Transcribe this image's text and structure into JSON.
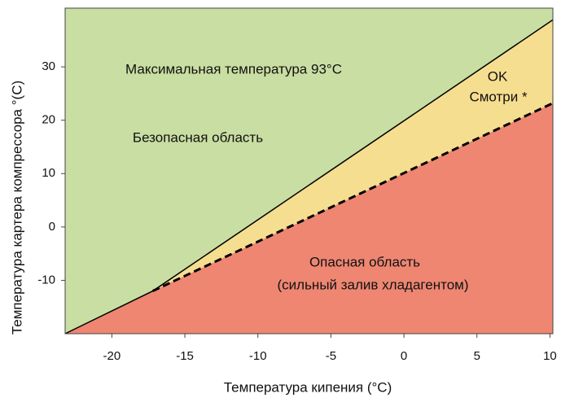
{
  "chart_data": {
    "type": "line",
    "xlabel": "Температура кипения (°C)",
    "ylabel": "Температура картера компрессора °(C)",
    "xlim": [
      -23.2,
      10.2
    ],
    "ylim": [
      -20,
      41
    ],
    "xticks": [
      -20,
      -15,
      -10,
      -5,
      0,
      5,
      10
    ],
    "yticks": [
      -10,
      0,
      10,
      20,
      30
    ],
    "region_colors": {
      "safe": "#c9dea2",
      "caution": "#f6de90",
      "danger": "#ee8672"
    },
    "series": [
      {
        "style": "solid",
        "color": "#000000",
        "x": [
          -23.2,
          -17.2,
          10.2
        ],
        "values": [
          -20,
          -12,
          38.8
        ]
      },
      {
        "style": "dashed",
        "color": "#000000",
        "x": [
          -17.2,
          10.2
        ],
        "values": [
          -12,
          23.2
        ]
      }
    ],
    "annotations": [
      "Максимальная температура 93°C",
      "OK",
      "Смотри *",
      "Безопасная область",
      "Опасная область",
      "(сильный залив хладагентом)"
    ]
  }
}
